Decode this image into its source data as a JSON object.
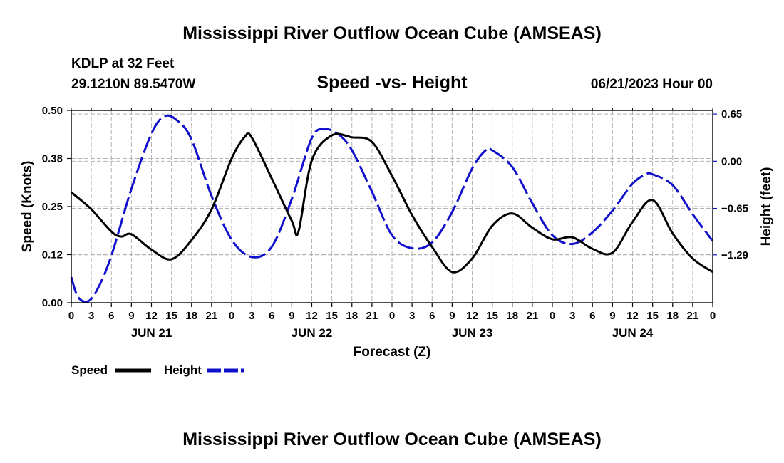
{
  "colors": {
    "speed": "#000000",
    "height": "#1010cc",
    "grid": "#b4b4b4",
    "background": "#ffffff"
  },
  "header": {
    "title": "Mississippi River Outflow Ocean Cube (AMSEAS)",
    "station": "KDLP at 32 Feet",
    "coords": "29.1210N  89.5470W",
    "subtitle": "Speed -vs- Height",
    "datetime": "06/21/2023 Hour 00"
  },
  "footer": {
    "title": "Mississippi River Outflow Ocean Cube (AMSEAS)"
  },
  "legend": {
    "speed_label": "Speed",
    "height_label": "Height"
  },
  "chart_data": {
    "type": "line",
    "title": "Speed -vs- Height",
    "xlabel": "Forecast (Z)",
    "ylabel": "Speed (Knots)",
    "y2label": "Height (feet)",
    "xlim": [
      0,
      96
    ],
    "ylim": [
      0,
      0.5
    ],
    "y2lim": [
      -1.95,
      0.7
    ],
    "grid": true,
    "legend_position": "bottom-left",
    "x_tick_labels": [
      "0",
      "3",
      "6",
      "9",
      "12",
      "15",
      "18",
      "21",
      "0",
      "3",
      "6",
      "9",
      "12",
      "15",
      "18",
      "21",
      "0",
      "3",
      "6",
      "9",
      "12",
      "15",
      "18",
      "21",
      "0",
      "3",
      "6",
      "9",
      "12",
      "15",
      "18",
      "21",
      "0"
    ],
    "day_labels": [
      {
        "label": "JUN 21",
        "x": 12
      },
      {
        "label": "JUN 22",
        "x": 36
      },
      {
        "label": "JUN 23",
        "x": 60
      },
      {
        "label": "JUN 24",
        "x": 84
      }
    ],
    "y_ticks": [
      {
        "value": 0.0,
        "label": "0.00"
      },
      {
        "value": 0.125,
        "label": "0.12"
      },
      {
        "value": 0.25,
        "label": "0.25"
      },
      {
        "value": 0.375,
        "label": "0.38"
      },
      {
        "value": 0.5,
        "label": "0.50"
      }
    ],
    "y2_ticks": [
      {
        "value": 0.65,
        "label": "0.65"
      },
      {
        "value": 0.0,
        "label": "0.00"
      },
      {
        "value": -0.65,
        "label": "−0.65"
      },
      {
        "value": -1.29,
        "label": "−1.29"
      }
    ],
    "series": [
      {
        "name": "Speed",
        "axis": "left",
        "style": "solid",
        "x": [
          0,
          3,
          6,
          7.5,
          9,
          12,
          15,
          18,
          21,
          24,
          26,
          27,
          30,
          33,
          34,
          36,
          39,
          42,
          45,
          48,
          51,
          54,
          57,
          60,
          63,
          66,
          69,
          72,
          75,
          78,
          81,
          84,
          87,
          90,
          93,
          96
        ],
        "values": [
          0.287,
          0.243,
          0.185,
          0.172,
          0.178,
          0.138,
          0.113,
          0.163,
          0.243,
          0.375,
          0.432,
          0.43,
          0.323,
          0.213,
          0.185,
          0.37,
          0.435,
          0.43,
          0.418,
          0.33,
          0.228,
          0.145,
          0.08,
          0.115,
          0.2,
          0.232,
          0.195,
          0.165,
          0.17,
          0.14,
          0.13,
          0.21,
          0.267,
          0.18,
          0.115,
          0.08
        ]
      },
      {
        "name": "Height",
        "axis": "right",
        "style": "dashed",
        "x": [
          0,
          1,
          2.5,
          4,
          6,
          9,
          12,
          14,
          16,
          18,
          21,
          24,
          27,
          30,
          33,
          36,
          38,
          40,
          42,
          45,
          48,
          51,
          54,
          57,
          60,
          62,
          63,
          66,
          69,
          72,
          75,
          78,
          81,
          84,
          86,
          87,
          90,
          93,
          96
        ],
        "values": [
          -1.6,
          -1.87,
          -1.93,
          -1.75,
          -1.3,
          -0.38,
          0.38,
          0.62,
          0.55,
          0.3,
          -0.48,
          -1.08,
          -1.32,
          -1.18,
          -0.52,
          0.32,
          0.44,
          0.37,
          0.15,
          -0.42,
          -1.02,
          -1.2,
          -1.12,
          -0.7,
          -0.1,
          0.15,
          0.15,
          -0.08,
          -0.58,
          -1.02,
          -1.14,
          -0.98,
          -0.68,
          -0.31,
          -0.18,
          -0.18,
          -0.33,
          -0.73,
          -1.1
        ]
      }
    ]
  }
}
